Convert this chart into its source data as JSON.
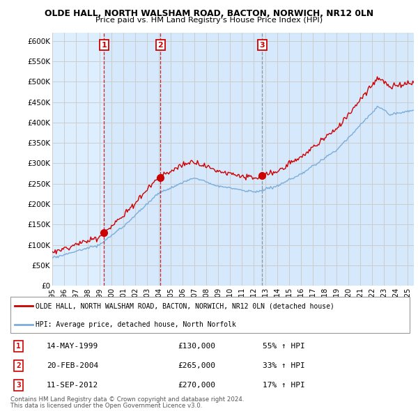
{
  "title1": "OLDE HALL, NORTH WALSHAM ROAD, BACTON, NORWICH, NR12 0LN",
  "title2": "Price paid vs. HM Land Registry's House Price Index (HPI)",
  "ylim": [
    0,
    620000
  ],
  "yticks": [
    0,
    50000,
    100000,
    150000,
    200000,
    250000,
    300000,
    350000,
    400000,
    450000,
    500000,
    550000,
    600000
  ],
  "ytick_labels": [
    "£0",
    "£50K",
    "£100K",
    "£150K",
    "£200K",
    "£250K",
    "£300K",
    "£350K",
    "£400K",
    "£450K",
    "£500K",
    "£550K",
    "£600K"
  ],
  "xlim_start": 1995.0,
  "xlim_end": 2025.5,
  "xtick_years": [
    1995,
    1996,
    1997,
    1998,
    1999,
    2000,
    2001,
    2002,
    2003,
    2004,
    2005,
    2006,
    2007,
    2008,
    2009,
    2010,
    2011,
    2012,
    2013,
    2014,
    2015,
    2016,
    2017,
    2018,
    2019,
    2020,
    2021,
    2022,
    2023,
    2024,
    2025
  ],
  "sale_color": "#cc0000",
  "hpi_color": "#7aaddb",
  "sale_label": "OLDE HALL, NORTH WALSHAM ROAD, BACTON, NORWICH, NR12 0LN (detached house)",
  "hpi_label": "HPI: Average price, detached house, North Norfolk",
  "chart_bg": "#ddeeff",
  "transactions": [
    {
      "num": 1,
      "date_x": 1999.37,
      "price": 130000,
      "label": "14-MAY-1999",
      "pct": "55%",
      "dir": "↑",
      "vline_color": "#cc0000",
      "vline_style": "--"
    },
    {
      "num": 2,
      "date_x": 2004.13,
      "price": 265000,
      "label": "20-FEB-2004",
      "pct": "33%",
      "dir": "↑",
      "vline_color": "#cc0000",
      "vline_style": "--"
    },
    {
      "num": 3,
      "date_x": 2012.71,
      "price": 270000,
      "label": "11-SEP-2012",
      "pct": "17%",
      "dir": "↑",
      "vline_color": "#888888",
      "vline_style": "--"
    }
  ],
  "footer1": "Contains HM Land Registry data © Crown copyright and database right 2024.",
  "footer2": "This data is licensed under the Open Government Licence v3.0.",
  "background_color": "#ffffff",
  "grid_color": "#cccccc"
}
